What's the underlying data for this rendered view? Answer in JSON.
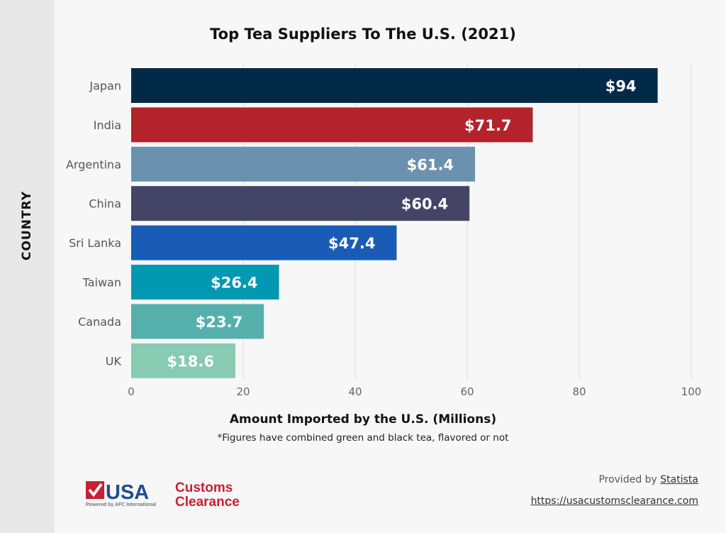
{
  "chart_data": {
    "type": "bar",
    "orientation": "horizontal",
    "title": "Top Tea Suppliers To The U.S. (2021)",
    "xlabel": "Amount Imported by the U.S. (Millions)",
    "ylabel": "COUNTRY",
    "note": "*Figures have combined green and black tea, flavored or not",
    "categories": [
      "Japan",
      "India",
      "Argentina",
      "China",
      "Sri Lanka",
      "Taiwan",
      "Canada",
      "UK"
    ],
    "values": [
      94,
      71.7,
      61.4,
      60.4,
      47.4,
      26.4,
      23.7,
      18.6
    ],
    "data_labels": [
      "$94",
      "$71.7",
      "$61.4",
      "$60.4",
      "$47.4",
      "$26.4",
      "$23.7",
      "$18.6"
    ],
    "colors": [
      "#002a48",
      "#b2232c",
      "#6c91b0",
      "#434466",
      "#1a5cb5",
      "#0098b2",
      "#55b0ac",
      "#86cbb2"
    ],
    "xlim": [
      0,
      100
    ],
    "xticks": [
      0,
      20,
      40,
      60,
      80,
      100
    ],
    "grid": true,
    "legend": "none"
  },
  "footer": {
    "provided_by": "Provided by",
    "source": "Statista",
    "url": "https://usacustomsclearance.com"
  },
  "logo": {
    "text_main": "USA",
    "text_side_1": "Customs",
    "text_side_2": "Clearance",
    "tagline": "Powered by AFC International"
  }
}
